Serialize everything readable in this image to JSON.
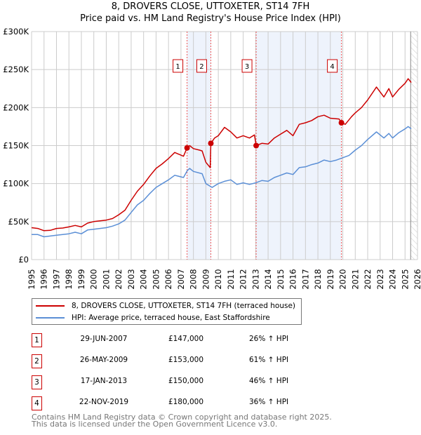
{
  "title": "8, DROVERS CLOSE, UTTOXETER, ST14 7FH",
  "subtitle": "Price paid vs. HM Land Registry's House Price Index (HPI)",
  "colors": {
    "property": "#cc0000",
    "hpi": "#5b8fd6",
    "shade": "#eef3fc",
    "grid": "#cccccc"
  },
  "chart_data": {
    "type": "line",
    "xlim": [
      1995,
      2026
    ],
    "ylim": [
      0,
      300000
    ],
    "x_ticks": [
      "1995",
      "1996",
      "1997",
      "1998",
      "1999",
      "2000",
      "2001",
      "2002",
      "2003",
      "2004",
      "2005",
      "2006",
      "2007",
      "2008",
      "2009",
      "2010",
      "2011",
      "2012",
      "2013",
      "2014",
      "2015",
      "2016",
      "2017",
      "2018",
      "2019",
      "2020",
      "2021",
      "2022",
      "2023",
      "2024",
      "2025",
      "2026"
    ],
    "y_ticks": [
      {
        "v": 0,
        "label": "£0"
      },
      {
        "v": 50000,
        "label": "£50K"
      },
      {
        "v": 100000,
        "label": "£100K"
      },
      {
        "v": 150000,
        "label": "£150K"
      },
      {
        "v": 200000,
        "label": "£200K"
      },
      {
        "v": 250000,
        "label": "£250K"
      },
      {
        "v": 300000,
        "label": "£300K"
      }
    ],
    "grid": true,
    "series": [
      {
        "name": "8, DROVERS CLOSE, UTTOXETER, ST14 7FH (terraced house)",
        "key": "property",
        "points": [
          [
            1995,
            42000
          ],
          [
            1995.5,
            41000
          ],
          [
            1996,
            38000
          ],
          [
            1996.5,
            38500
          ],
          [
            1997,
            41000
          ],
          [
            1997.5,
            41500
          ],
          [
            1998,
            43000
          ],
          [
            1998.5,
            45000
          ],
          [
            1999,
            43000
          ],
          [
            1999.5,
            48000
          ],
          [
            2000,
            50000
          ],
          [
            2000.5,
            51000
          ],
          [
            2001,
            52000
          ],
          [
            2001.5,
            54000
          ],
          [
            2002,
            59000
          ],
          [
            2002.5,
            65000
          ],
          [
            2003,
            78000
          ],
          [
            2003.5,
            90000
          ],
          [
            2004,
            99000
          ],
          [
            2004.5,
            110000
          ],
          [
            2005,
            120000
          ],
          [
            2005.5,
            126000
          ],
          [
            2006,
            133000
          ],
          [
            2006.5,
            141000
          ],
          [
            2007.2,
            136000
          ],
          [
            2007.49,
            147000
          ],
          [
            2007.7,
            150000
          ],
          [
            2008,
            146000
          ],
          [
            2008.5,
            144000
          ],
          [
            2008.7,
            143000
          ],
          [
            2009,
            128000
          ],
          [
            2009.35,
            121000
          ],
          [
            2009.4,
            153000
          ],
          [
            2009.7,
            160000
          ],
          [
            2010,
            163000
          ],
          [
            2010.5,
            174000
          ],
          [
            2011,
            168000
          ],
          [
            2011.5,
            160000
          ],
          [
            2012,
            163000
          ],
          [
            2012.5,
            160000
          ],
          [
            2012.9,
            164000
          ],
          [
            2013.04,
            150000
          ],
          [
            2013.5,
            153000
          ],
          [
            2014,
            152000
          ],
          [
            2014.5,
            160000
          ],
          [
            2015,
            165000
          ],
          [
            2015.5,
            170000
          ],
          [
            2016,
            163000
          ],
          [
            2016.5,
            178000
          ],
          [
            2017,
            180000
          ],
          [
            2017.5,
            183000
          ],
          [
            2018,
            188000
          ],
          [
            2018.5,
            190000
          ],
          [
            2019,
            186000
          ],
          [
            2019.7,
            185000
          ],
          [
            2019.89,
            180000
          ],
          [
            2020.2,
            178000
          ],
          [
            2020.7,
            188000
          ],
          [
            2021,
            193000
          ],
          [
            2021.5,
            200000
          ],
          [
            2022,
            210000
          ],
          [
            2022.7,
            227000
          ],
          [
            2023.3,
            214000
          ],
          [
            2023.7,
            225000
          ],
          [
            2024,
            214000
          ],
          [
            2024.5,
            224000
          ],
          [
            2025,
            232000
          ],
          [
            2025.25,
            238000
          ],
          [
            2025.5,
            233000
          ]
        ]
      },
      {
        "name": "HPI: Average price, terraced house, East Staffordshire",
        "key": "hpi",
        "points": [
          [
            1995,
            33000
          ],
          [
            1995.5,
            33000
          ],
          [
            1996,
            30000
          ],
          [
            1996.5,
            31000
          ],
          [
            1997,
            32000
          ],
          [
            1997.5,
            33000
          ],
          [
            1998,
            34000
          ],
          [
            1998.5,
            36000
          ],
          [
            1999,
            34000
          ],
          [
            1999.5,
            39000
          ],
          [
            2000,
            40000
          ],
          [
            2000.5,
            41000
          ],
          [
            2001,
            42000
          ],
          [
            2001.5,
            44000
          ],
          [
            2002,
            47000
          ],
          [
            2002.5,
            52000
          ],
          [
            2003,
            62000
          ],
          [
            2003.5,
            72000
          ],
          [
            2004,
            78000
          ],
          [
            2004.5,
            87000
          ],
          [
            2005,
            95000
          ],
          [
            2005.5,
            100000
          ],
          [
            2006,
            105000
          ],
          [
            2006.5,
            111000
          ],
          [
            2007.2,
            108000
          ],
          [
            2007.5,
            117000
          ],
          [
            2007.7,
            120000
          ],
          [
            2008,
            116000
          ],
          [
            2008.7,
            113000
          ],
          [
            2009,
            100000
          ],
          [
            2009.5,
            95000
          ],
          [
            2010,
            100000
          ],
          [
            2010.5,
            103000
          ],
          [
            2011,
            105000
          ],
          [
            2011.5,
            99000
          ],
          [
            2012,
            101000
          ],
          [
            2012.5,
            99000
          ],
          [
            2013,
            101000
          ],
          [
            2013.5,
            104000
          ],
          [
            2014,
            103000
          ],
          [
            2014.5,
            108000
          ],
          [
            2015,
            111000
          ],
          [
            2015.5,
            114000
          ],
          [
            2016,
            112000
          ],
          [
            2016.5,
            121000
          ],
          [
            2017,
            122000
          ],
          [
            2017.5,
            125000
          ],
          [
            2018,
            127000
          ],
          [
            2018.5,
            131000
          ],
          [
            2019,
            129000
          ],
          [
            2019.5,
            131000
          ],
          [
            2020,
            134000
          ],
          [
            2020.5,
            137000
          ],
          [
            2021,
            144000
          ],
          [
            2021.5,
            150000
          ],
          [
            2022,
            158000
          ],
          [
            2022.7,
            168000
          ],
          [
            2023.3,
            160000
          ],
          [
            2023.7,
            166000
          ],
          [
            2024,
            160000
          ],
          [
            2024.5,
            167000
          ],
          [
            2025,
            172000
          ],
          [
            2025.25,
            175000
          ],
          [
            2025.5,
            172000
          ]
        ]
      }
    ],
    "sales": [
      {
        "n": "1",
        "x": 2007.49,
        "price": 147000,
        "date": "29-JUN-2007",
        "price_label": "£147,000",
        "hpi": "26% ↑ HPI"
      },
      {
        "n": "2",
        "x": 2009.4,
        "price": 153000,
        "date": "26-MAY-2009",
        "price_label": "£153,000",
        "hpi": "61% ↑ HPI"
      },
      {
        "n": "3",
        "x": 2013.04,
        "price": 150000,
        "date": "17-JAN-2013",
        "price_label": "£150,000",
        "hpi": "46% ↑ HPI"
      },
      {
        "n": "4",
        "x": 2019.89,
        "price": 180000,
        "date": "22-NOV-2019",
        "price_label": "£180,000",
        "hpi": "36% ↑ HPI"
      }
    ],
    "forecast_start": 2025.45
  },
  "legend": {
    "property": "8, DROVERS CLOSE, UTTOXETER, ST14 7FH (terraced house)",
    "hpi": "HPI: Average price, terraced house, East Staffordshire"
  },
  "footer": {
    "line1": "Contains HM Land Registry data © Crown copyright and database right 2025.",
    "line2": "This data is licensed under the Open Government Licence v3.0."
  }
}
